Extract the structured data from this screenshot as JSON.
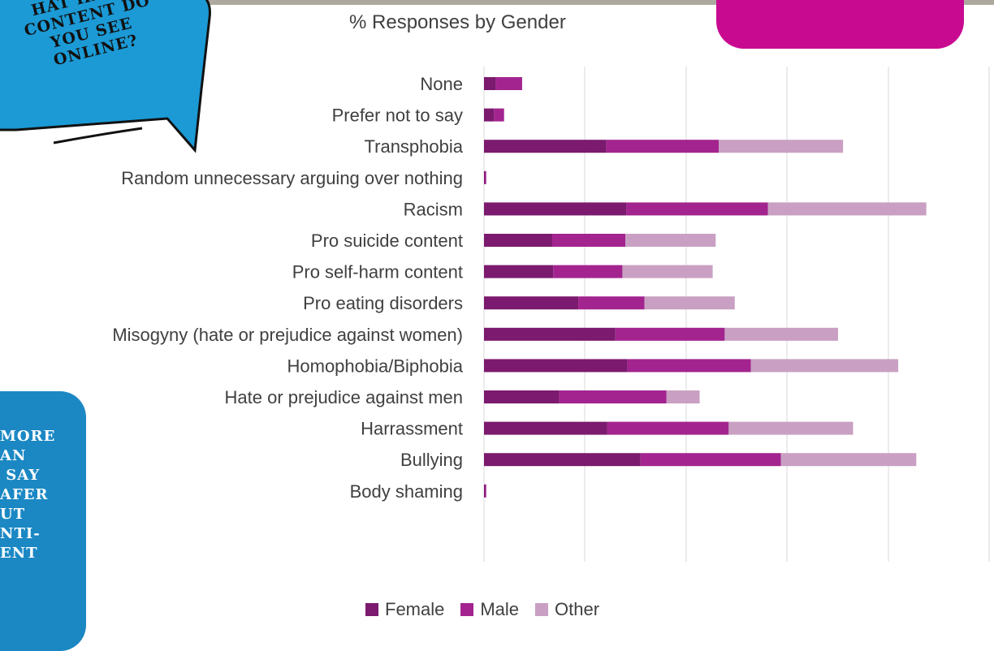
{
  "speech_bubble": {
    "text": "HAT HARM\nCONTENT DO\nYOU SEE\nONLINE?",
    "color": "#1b9ad6"
  },
  "side_card": {
    "text": "MORE\nAN\n SAY\nAFER\nUT\nNTI-\nENT",
    "color": "#1b88c4"
  },
  "pink_card": {
    "color": "#c80a91"
  },
  "chart_data": {
    "type": "bar",
    "orientation": "horizontal",
    "stacked": true,
    "title": "% Responses by Gender",
    "xlabel": "",
    "ylabel": "",
    "grid": true,
    "legend_position": "bottom",
    "categories": [
      "None",
      "Prefer not to say",
      "Transphobia",
      "Random unnecessary arguing over nothing",
      "Racism",
      "Pro suicide content",
      "Pro self-harm content",
      "Pro eating disorders",
      "Misogyny (hate or prejudice against women)",
      "Homophobia/Biphobia",
      "Hate or prejudice against men",
      "Harrassment",
      "Bullying",
      "Body shaming"
    ],
    "series": [
      {
        "name": "Female",
        "color": "#7b1a6e",
        "values": [
          1.2,
          1.0,
          12.2,
          0.1,
          14.2,
          6.8,
          6.9,
          9.4,
          13.1,
          14.3,
          7.5,
          12.3,
          15.6,
          0.1
        ]
      },
      {
        "name": "Male",
        "color": "#a3248f",
        "values": [
          2.6,
          1.0,
          11.2,
          0.1,
          14.1,
          7.3,
          6.9,
          6.6,
          10.9,
          12.3,
          10.7,
          12.1,
          14.0,
          0.1
        ]
      },
      {
        "name": "Other",
        "color": "#c9a0c3",
        "values": [
          0,
          0,
          12.4,
          0,
          15.8,
          9.0,
          9.0,
          9.0,
          11.3,
          14.7,
          3.3,
          12.4,
          13.5,
          0
        ]
      }
    ]
  }
}
